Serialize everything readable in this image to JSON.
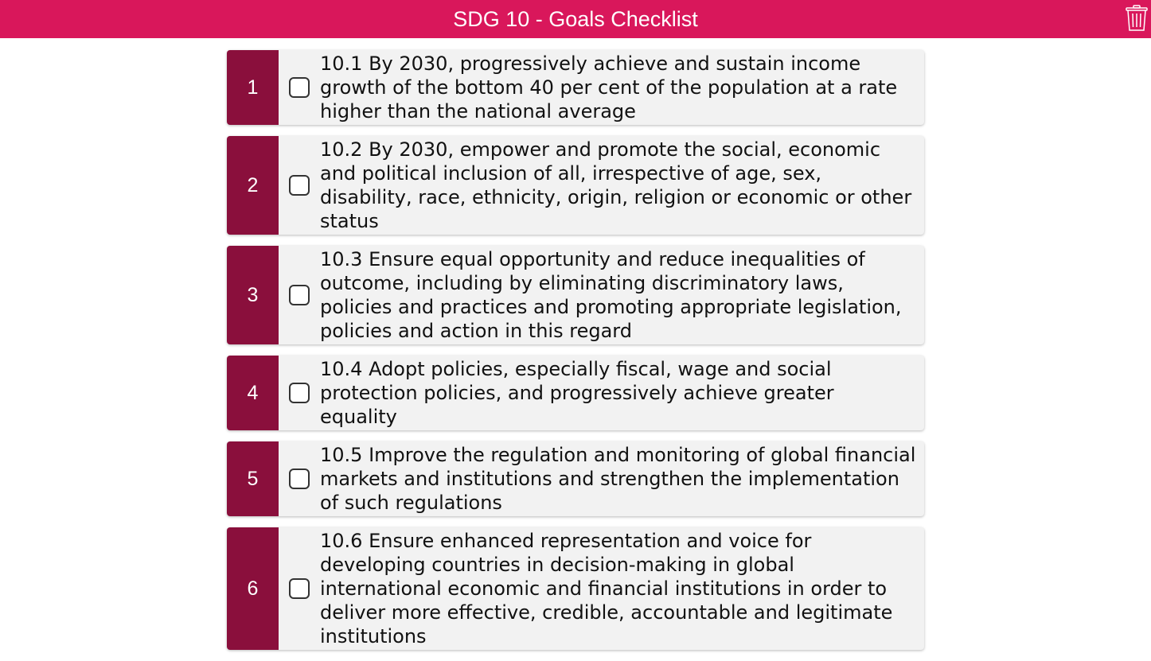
{
  "header": {
    "title": "SDG 10 - Goals Checklist",
    "trash_icon": "trash-icon"
  },
  "colors": {
    "header_bg": "#d9175b",
    "number_bg": "#8a0f3c",
    "item_bg": "#f2f2f2"
  },
  "items": [
    {
      "number": "1",
      "checked": false,
      "text": "10.1 By 2030, progressively achieve and sustain income growth of the bottom 40 per cent of the population at a rate higher than the national average"
    },
    {
      "number": "2",
      "checked": false,
      "text": "10.2 By 2030, empower and promote the social, economic and political inclusion of all, irrespective of age, sex, disability, race, ethnicity, origin, religion or economic or other status"
    },
    {
      "number": "3",
      "checked": false,
      "text": "10.3 Ensure equal opportunity and reduce inequalities of outcome, including by eliminating discriminatory laws, policies and practices and promoting appropriate legislation, policies and action in this regard"
    },
    {
      "number": "4",
      "checked": false,
      "text": "10.4 Adopt policies, especially fiscal, wage and social protection policies, and progressively achieve greater equality"
    },
    {
      "number": "5",
      "checked": false,
      "text": "10.5 Improve the regulation and monitoring of global financial markets and institutions and strengthen the implementation of such regulations"
    },
    {
      "number": "6",
      "checked": false,
      "text": "10.6 Ensure enhanced representation and voice for developing countries in decision-making in global international economic and financial institutions in order to deliver more effective, credible, accountable and legitimate institutions"
    }
  ]
}
